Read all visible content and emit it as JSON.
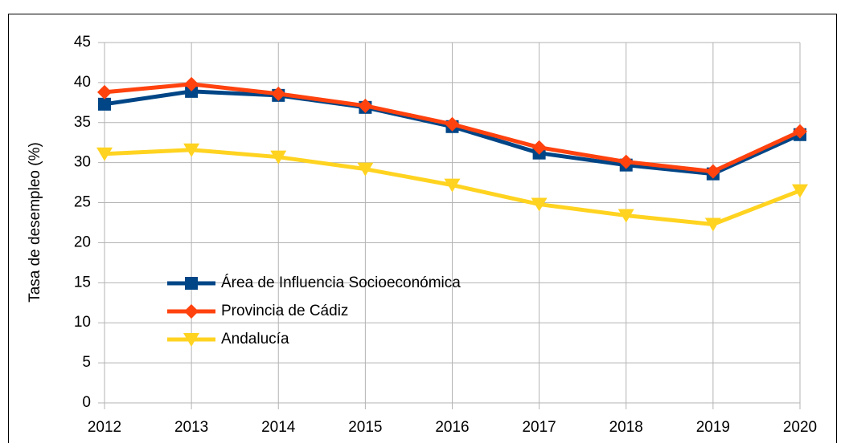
{
  "chart_data": {
    "type": "line",
    "y_label": "Tasa de desempleo (%)",
    "categories": [
      "2012",
      "2013",
      "2014",
      "2015",
      "2016",
      "2017",
      "2018",
      "2019",
      "2020"
    ],
    "series": [
      {
        "name": "Área de Influencia Socioeconómica",
        "color": "#004586",
        "marker": "square",
        "values": [
          37.3,
          38.9,
          38.4,
          36.9,
          34.5,
          31.2,
          29.7,
          28.6,
          33.5
        ]
      },
      {
        "name": "Provincia de Cádiz",
        "color": "#ff420e",
        "marker": "diamond",
        "values": [
          38.8,
          39.8,
          38.6,
          37.1,
          34.8,
          31.9,
          30.1,
          28.9,
          33.9
        ]
      },
      {
        "name": "Andalucía",
        "color": "#ffd320",
        "marker": "triangle-down",
        "values": [
          31.1,
          31.6,
          30.7,
          29.2,
          27.2,
          24.8,
          23.4,
          22.3,
          26.5
        ]
      }
    ],
    "ylim": [
      0,
      45
    ],
    "yticks": [
      0,
      5,
      10,
      15,
      20,
      25,
      30,
      35,
      40,
      45
    ],
    "grid": true,
    "legend": "inside-left"
  }
}
